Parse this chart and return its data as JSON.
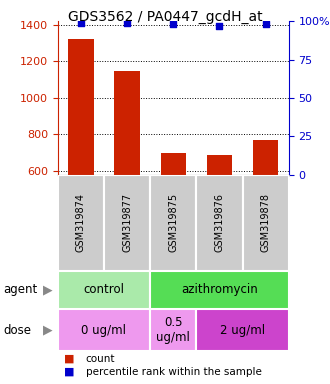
{
  "title": "GDS3562 / PA0447_gcdH_at",
  "samples": [
    "GSM319874",
    "GSM319877",
    "GSM319875",
    "GSM319876",
    "GSM319878"
  ],
  "counts": [
    1320,
    1145,
    700,
    690,
    770
  ],
  "percentiles": [
    99,
    99,
    98,
    97,
    98
  ],
  "ylim_left": [
    580,
    1420
  ],
  "ylim_right": [
    0,
    100
  ],
  "yticks_left": [
    600,
    800,
    1000,
    1200,
    1400
  ],
  "yticks_right": [
    0,
    25,
    50,
    75,
    100
  ],
  "bar_color": "#cc2200",
  "dot_color": "#0000cc",
  "agent_row": [
    {
      "label": "control",
      "span": [
        0,
        2
      ],
      "color": "#aaeaaa"
    },
    {
      "label": "azithromycin",
      "span": [
        2,
        5
      ],
      "color": "#55dd55"
    }
  ],
  "dose_row": [
    {
      "label": "0 ug/ml",
      "span": [
        0,
        2
      ],
      "color": "#ee99ee"
    },
    {
      "label": "0.5\nug/ml",
      "span": [
        2,
        3
      ],
      "color": "#ee99ee"
    },
    {
      "label": "2 ug/ml",
      "span": [
        3,
        5
      ],
      "color": "#cc44cc"
    }
  ],
  "left_axis_color": "#cc2200",
  "right_axis_color": "#0000cc",
  "title_fontsize": 10,
  "tick_fontsize": 8,
  "bar_width": 0.55,
  "sample_box_color": "#cccccc",
  "legend_count_color": "#cc2200",
  "legend_pct_color": "#0000cc"
}
